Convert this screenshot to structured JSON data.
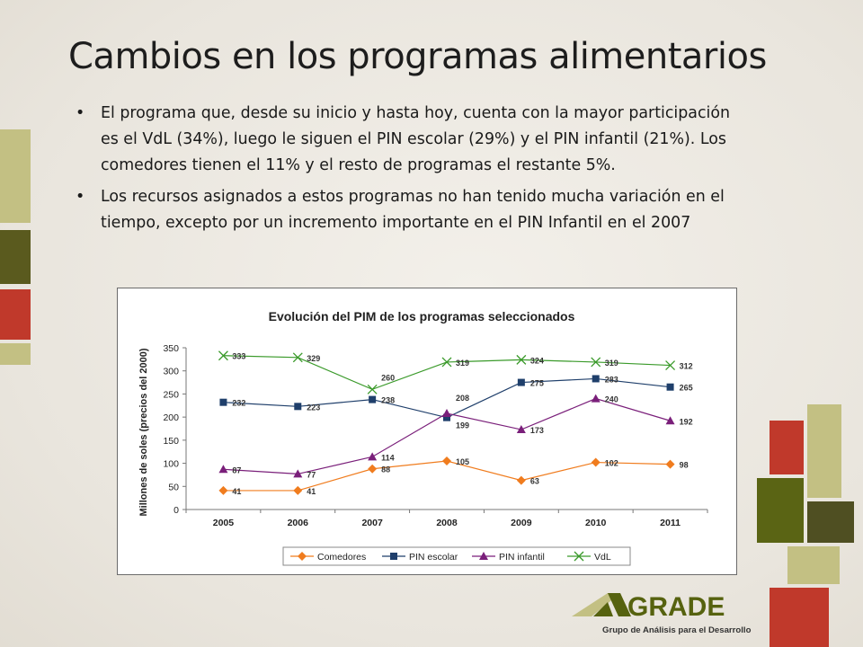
{
  "slide": {
    "title": "Cambios en los programas alimentarios",
    "bullets": [
      "El programa que, desde su inicio y hasta hoy, cuenta con la mayor participación es el VdL (34%), luego le siguen el PIN escolar (29%) y el PIN infantil (21%). Los comedores tienen el 11% y el resto de programas el restante 5%.",
      "Los recursos asignados a estos programas no han tenido mucha variación en el tiempo, excepto por un incremento importante en el PIN Infantil en el 2007"
    ],
    "bullet_glyph": "•"
  },
  "logo": {
    "name": "GRADE",
    "tagline": "Grupo de Análisis para el Desarrollo"
  },
  "colors": {
    "olive_light": "#c3c083",
    "olive_dark": "#5a5a1e",
    "red": "#c0392b",
    "brand_green": "#56620f",
    "comedores": "#f07c1e",
    "pin_escolar": "#1f3f6b",
    "pin_infantil": "#7a1f7a",
    "vdl": "#3a9a2a"
  },
  "chart_data": {
    "type": "line",
    "title": "Evolución del PIM de los programas seleccionados",
    "xlabel": "",
    "ylabel": "Millones de soles (precios del 2000)",
    "x": [
      "2005",
      "2006",
      "2007",
      "2008",
      "2009",
      "2010",
      "2011"
    ],
    "ylim": [
      0,
      350
    ],
    "yticks": [
      "0",
      "50",
      "100",
      "150",
      "200",
      "250",
      "300",
      "350"
    ],
    "grid": false,
    "legend": "bottom",
    "series": [
      {
        "name": "Comedores",
        "marker": "diamond",
        "color": "#f07c1e",
        "values": [
          41,
          41,
          88,
          105,
          63,
          102,
          98
        ]
      },
      {
        "name": "PIN escolar",
        "marker": "square",
        "color": "#1f3f6b",
        "values": [
          232,
          223,
          238,
          199,
          275,
          283,
          265
        ]
      },
      {
        "name": "PIN infantil",
        "marker": "triangle",
        "color": "#7a1f7a",
        "values": [
          87,
          77,
          114,
          208,
          173,
          240,
          192
        ]
      },
      {
        "name": "VdL",
        "marker": "x",
        "color": "#3a9a2a",
        "values": [
          333,
          329,
          260,
          319,
          324,
          319,
          312
        ]
      }
    ]
  }
}
